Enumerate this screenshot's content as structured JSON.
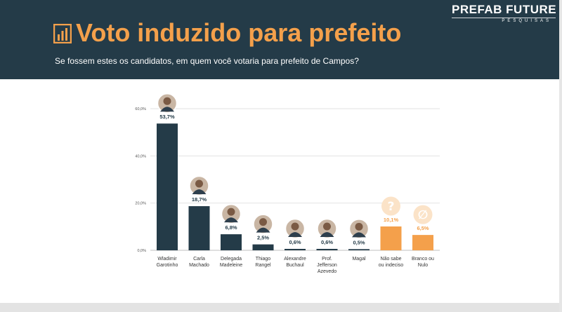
{
  "header": {
    "title": "Voto induzido para prefeito",
    "subtitle": "Se fossem estes os candidatos, em quem você votaria para prefeito de Campos?",
    "title_icon": "bar-chart-icon"
  },
  "brand": {
    "name": "PREFAB FUTURE",
    "sub": "PESQUISAS"
  },
  "colors": {
    "header_bg": "#243b48",
    "accent": "#f4a04b",
    "bar_candidate": "#243b48",
    "bar_other": "#f4a04b"
  },
  "chart_data": {
    "type": "bar",
    "title": "",
    "xlabel": "",
    "ylabel": "",
    "ylim": [
      0,
      60
    ],
    "yticks": [
      0,
      20,
      40,
      60
    ],
    "ytick_labels": [
      "0,0%",
      "20,0%",
      "40,0%",
      "60,0%"
    ],
    "grid": true,
    "categories": [
      {
        "label_lines": [
          "Wladimir",
          "Garotinho"
        ],
        "value": 53.7,
        "value_label": "53,7%",
        "group": "candidate",
        "icon": "candidate-photo"
      },
      {
        "label_lines": [
          "Carla",
          "Machado"
        ],
        "value": 18.7,
        "value_label": "18,7%",
        "group": "candidate",
        "icon": "candidate-photo"
      },
      {
        "label_lines": [
          "Delegada",
          "Madeleine"
        ],
        "value": 6.8,
        "value_label": "6,8%",
        "group": "candidate",
        "icon": "candidate-photo"
      },
      {
        "label_lines": [
          "Thiago",
          "Rangel"
        ],
        "value": 2.5,
        "value_label": "2,5%",
        "group": "candidate",
        "icon": "candidate-photo"
      },
      {
        "label_lines": [
          "Alexandre",
          "Buchaul"
        ],
        "value": 0.6,
        "value_label": "0,6%",
        "group": "candidate",
        "icon": "candidate-photo"
      },
      {
        "label_lines": [
          "Prof.",
          "Jefferson",
          "Azevedo"
        ],
        "value": 0.6,
        "value_label": "0,6%",
        "group": "candidate",
        "icon": "candidate-photo"
      },
      {
        "label_lines": [
          "Magal"
        ],
        "value": 0.5,
        "value_label": "0,5%",
        "group": "candidate",
        "icon": "candidate-photo"
      },
      {
        "label_lines": [
          "Não sabe",
          "ou indeciso"
        ],
        "value": 10.1,
        "value_label": "10,1%",
        "group": "other",
        "icon": "question-mark-icon",
        "icon_text": "?"
      },
      {
        "label_lines": [
          "Branco ou",
          "Nulo"
        ],
        "value": 6.5,
        "value_label": "6,5%",
        "group": "other",
        "icon": "empty-set-icon",
        "icon_text": "∅"
      }
    ]
  }
}
